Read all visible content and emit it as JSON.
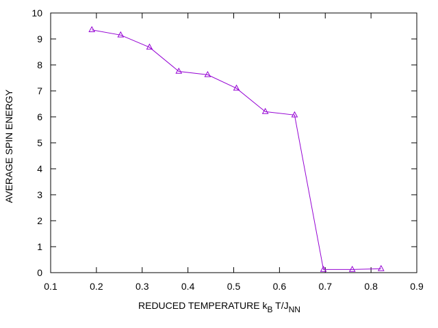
{
  "chart_data": {
    "type": "line",
    "xlabel": {
      "main": "REDUCED TEMPERATURE  k",
      "sub1": "B",
      "mid": " T/J",
      "sub2": "NN"
    },
    "ylabel": "AVERAGE SPIN ENERGY",
    "xlim": [
      0.1,
      0.9
    ],
    "ylim": [
      0,
      10
    ],
    "x_ticks": [
      0.1,
      0.2,
      0.3,
      0.4,
      0.5,
      0.6,
      0.7,
      0.8,
      0.9
    ],
    "x_tick_labels": [
      "0.1",
      "0.2",
      "0.3",
      "0.4",
      "0.5",
      "0.6",
      "0.7",
      "0.8",
      "0.9"
    ],
    "y_ticks": [
      0,
      1,
      2,
      3,
      4,
      5,
      6,
      7,
      8,
      9,
      10
    ],
    "y_tick_labels": [
      "0",
      "1",
      "2",
      "3",
      "4",
      "5",
      "6",
      "7",
      "8",
      "9",
      "10"
    ],
    "grid": false,
    "marker": "triangle",
    "colors": {
      "line": "#9400d3",
      "axes": "#000000"
    },
    "series": [
      {
        "x": [
          0.19,
          0.253,
          0.316,
          0.38,
          0.443,
          0.506,
          0.569,
          0.633,
          0.696,
          0.759,
          0.822
        ],
        "y": [
          9.35,
          9.15,
          8.68,
          7.75,
          7.62,
          7.1,
          6.2,
          6.07,
          0.12,
          0.12,
          0.15
        ]
      }
    ]
  }
}
